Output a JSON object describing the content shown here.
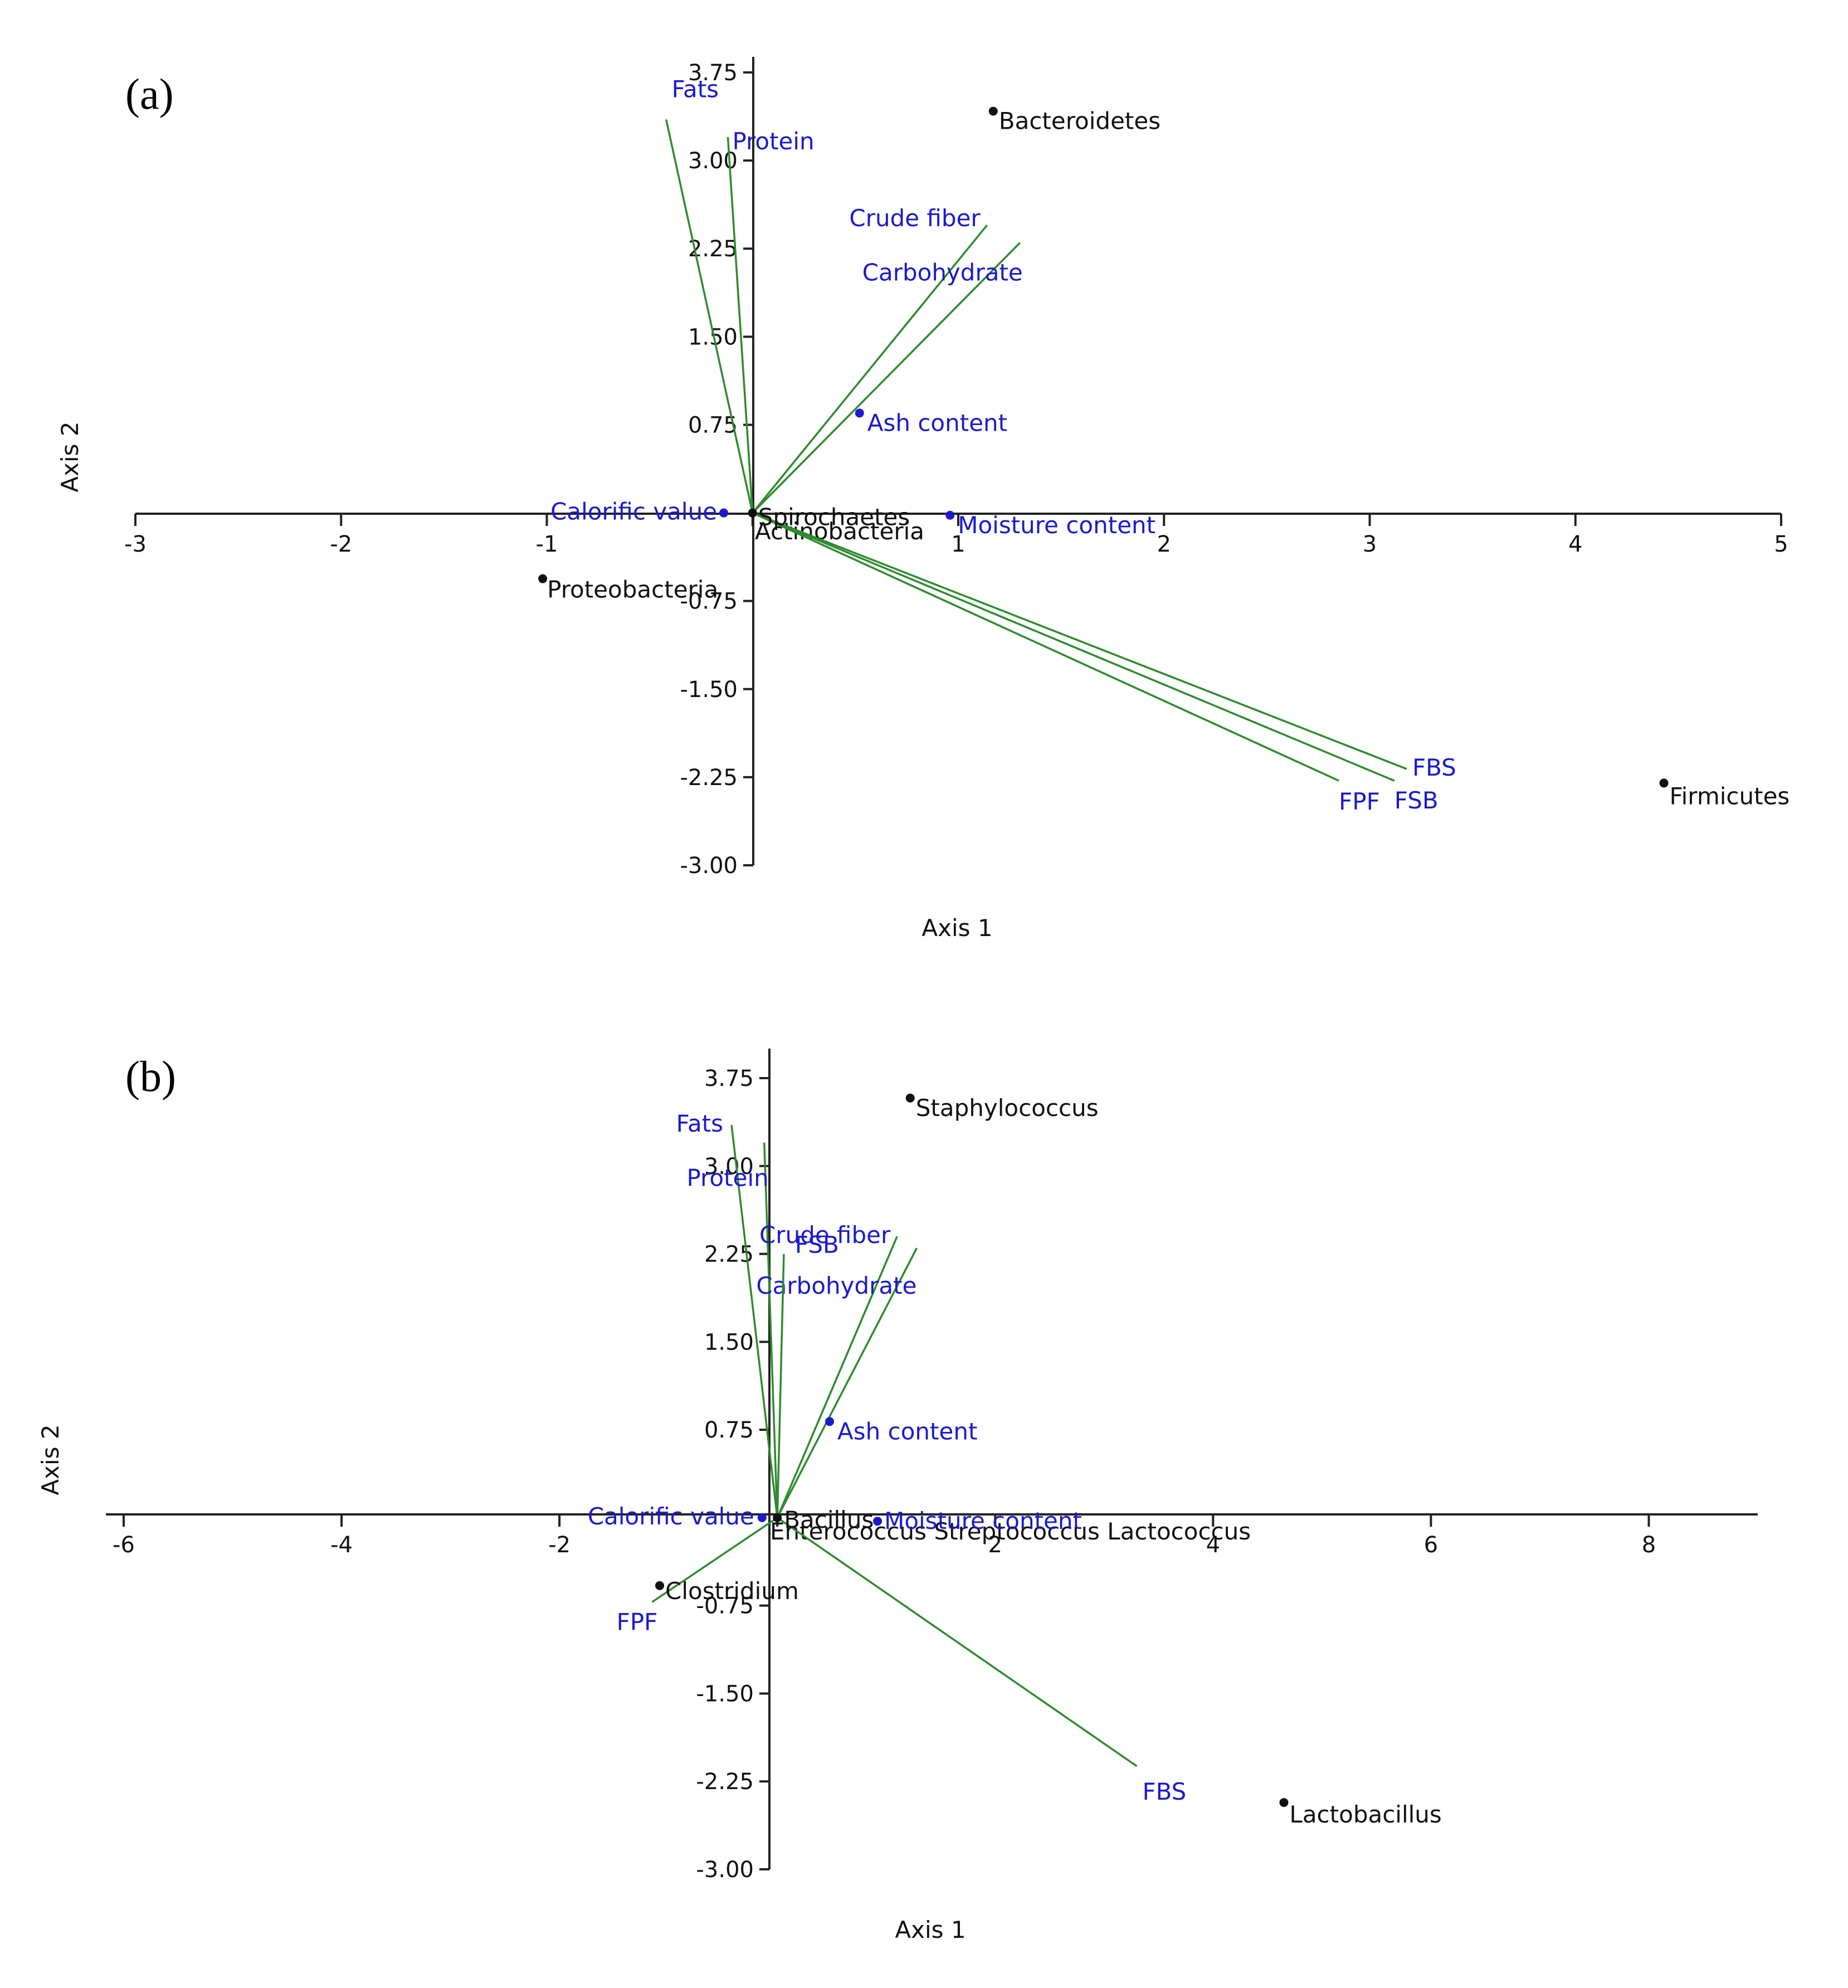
{
  "colors": {
    "vector": "#2e8b2e",
    "variable_label": "#1a1acc",
    "variable_point": "#1a1acc",
    "point_label": "#111111",
    "point": "#111111"
  },
  "chart_data": [
    {
      "type": "scatter",
      "subtype": "pca-biplot",
      "panel_label": "(a)",
      "xlabel": "Axis 1",
      "ylabel": "Axis 2",
      "xlim": [
        -3,
        5
      ],
      "ylim": [
        -3.0,
        3.75
      ],
      "xticks": [
        -3,
        -2,
        -1,
        0,
        1,
        2,
        3,
        4,
        5
      ],
      "xtick_labels": [
        "-3",
        "-2",
        "-1",
        "",
        "1",
        "2",
        "3",
        "4",
        "5"
      ],
      "yticks": [
        -3.0,
        -2.25,
        -1.5,
        -0.75,
        0.75,
        1.5,
        2.25,
        3.0,
        3.75
      ],
      "ytick_labels": [
        "-3.00",
        "-2.25",
        "-1.50",
        "-0.75",
        "0.75",
        "1.50",
        "2.25",
        "3.00",
        "3.75"
      ],
      "vectors": [
        {
          "name": "Fats",
          "x": -0.42,
          "y": 3.35
        },
        {
          "name": "Protein",
          "x": -0.12,
          "y": 3.2
        },
        {
          "name": "Crude fiber",
          "x": 1.14,
          "y": 2.45
        },
        {
          "name": "Carbohydrate",
          "x": 1.3,
          "y": 2.3
        },
        {
          "name": "FBS",
          "x": 3.18,
          "y": -2.18
        },
        {
          "name": "FSB",
          "x": 3.12,
          "y": -2.28
        },
        {
          "name": "FPF",
          "x": 2.85,
          "y": -2.28
        }
      ],
      "variable_points": [
        {
          "name": "Ash content",
          "x": 0.52,
          "y": 0.85
        },
        {
          "name": "Calorific value",
          "x": -0.14,
          "y": 0.0
        },
        {
          "name": "Moisture content",
          "x": 0.96,
          "y": -0.02
        }
      ],
      "points": [
        {
          "name": "Bacteroidetes",
          "x": 1.17,
          "y": 3.42
        },
        {
          "name": "Spirochaetes",
          "x": 0.0,
          "y": 0.0
        },
        {
          "name": "Proteobacteria",
          "x": -1.02,
          "y": -0.56
        },
        {
          "name": "Firmicutes",
          "x": 4.43,
          "y": -2.3
        }
      ],
      "overlapped_labels": "Actinobacteria"
    },
    {
      "type": "scatter",
      "subtype": "pca-biplot",
      "panel_label": "(b)",
      "xlabel": "Axis 1",
      "ylabel": "Axis 2",
      "xlim": [
        -6,
        9
      ],
      "ylim": [
        -3.0,
        3.75
      ],
      "xticks": [
        -6,
        -4,
        -2,
        0,
        2,
        4,
        6,
        8
      ],
      "xtick_labels": [
        "-6",
        "-4",
        "-2",
        "",
        "2",
        "4",
        "6",
        "8"
      ],
      "yticks": [
        -3.0,
        -2.25,
        -1.5,
        -0.75,
        0.75,
        1.5,
        2.25,
        3.0,
        3.75
      ],
      "ytick_labels": [
        "-3.00",
        "-2.25",
        "-1.50",
        "-0.75",
        "0.75",
        "1.50",
        "2.25",
        "3.00",
        "3.75"
      ],
      "vectors": [
        {
          "name": "Fats",
          "x": -0.42,
          "y": 3.35
        },
        {
          "name": "Protein",
          "x": -0.12,
          "y": 3.2
        },
        {
          "name": "Crude fiber",
          "x": 1.1,
          "y": 2.4
        },
        {
          "name": "Carbohydrate",
          "x": 1.28,
          "y": 2.3
        },
        {
          "name": "FSB",
          "x": 0.06,
          "y": 2.25
        },
        {
          "name": "FBS",
          "x": 3.3,
          "y": -2.12
        },
        {
          "name": "FPF",
          "x": -1.15,
          "y": -0.72
        }
      ],
      "variable_points": [
        {
          "name": "Ash content",
          "x": 0.48,
          "y": 0.82
        },
        {
          "name": "Calorific value",
          "x": -0.14,
          "y": 0.0
        },
        {
          "name": "Moisture content",
          "x": 0.92,
          "y": -0.03
        }
      ],
      "points": [
        {
          "name": "Staphylococcus",
          "x": 1.22,
          "y": 3.58
        },
        {
          "name": "Bacillus",
          "x": 0.0,
          "y": 0.0
        },
        {
          "name": "Clostridium",
          "x": -1.08,
          "y": -0.58
        },
        {
          "name": "Lactobacillus",
          "x": 4.65,
          "y": -2.43
        }
      ],
      "overlapped_labels": "Enterococcus Streptococcus Lactococcus"
    }
  ]
}
